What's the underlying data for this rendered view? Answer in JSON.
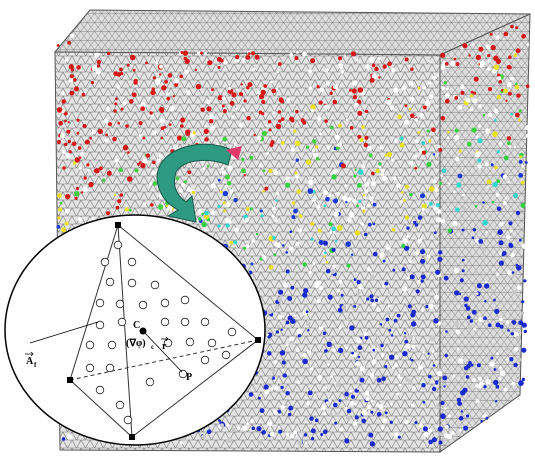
{
  "inset_labels": {
    "centroid": "C",
    "gradient": "(∇φ)",
    "gradient_subscript": "c",
    "vector_r": "r",
    "point": "P",
    "area": "A",
    "area_subscript": "f"
  }
}
